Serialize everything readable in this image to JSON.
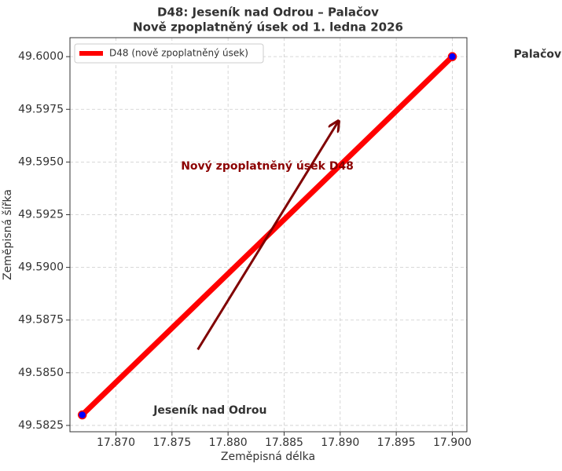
{
  "chart_data": {
    "type": "line",
    "title": "D48: Jeseník nad Odrou – Palačov",
    "subtitle": "Nově zpoplatněný úsek od 1. ledna 2026",
    "xlabel": "Zeměpisná délka",
    "ylabel": "Zeměpisná šířka",
    "series": [
      {
        "name": "D48 (nově zpoplatněný úsek)",
        "color": "#ff0000",
        "marker_color": "#0000ff",
        "x": [
          17.867,
          17.9
        ],
        "values": [
          49.583,
          49.6
        ]
      }
    ],
    "xlim": [
      17.8659,
      17.9013
    ],
    "ylim": [
      49.5822,
      49.6009
    ],
    "xticks": [
      {
        "value": 17.87,
        "label": "17.870"
      },
      {
        "value": 17.875,
        "label": "17.875"
      },
      {
        "value": 17.88,
        "label": "17.880"
      },
      {
        "value": 17.885,
        "label": "17.885"
      },
      {
        "value": 17.89,
        "label": "17.890"
      },
      {
        "value": 17.895,
        "label": "17.895"
      },
      {
        "value": 17.9,
        "label": "17.900"
      }
    ],
    "yticks": [
      {
        "value": 49.5825,
        "label": "49.5825"
      },
      {
        "value": 49.585,
        "label": "49.5850"
      },
      {
        "value": 49.5875,
        "label": "49.5875"
      },
      {
        "value": 49.59,
        "label": "49.5900"
      },
      {
        "value": 49.5925,
        "label": "49.5925"
      },
      {
        "value": 49.595,
        "label": "49.5950"
      },
      {
        "value": 49.5975,
        "label": "49.5975"
      },
      {
        "value": 49.6,
        "label": "49.6000"
      }
    ],
    "grid": true,
    "legend": "upper left",
    "annotations": [
      {
        "text": "Jeseník nad Odrou",
        "x": 17.8784,
        "y": 49.5832,
        "color": "#333333"
      },
      {
        "text": "Palačov",
        "x": 17.9076,
        "y": 49.6001,
        "color": "#333333"
      },
      {
        "text": "Nový zpoplatněný úsek D48",
        "x": 17.8835,
        "y": 49.5948,
        "color": "#8b0000",
        "arrow_from": [
          17.8773,
          49.5861
        ],
        "arrow_to": [
          17.8898,
          49.5969
        ]
      }
    ]
  }
}
